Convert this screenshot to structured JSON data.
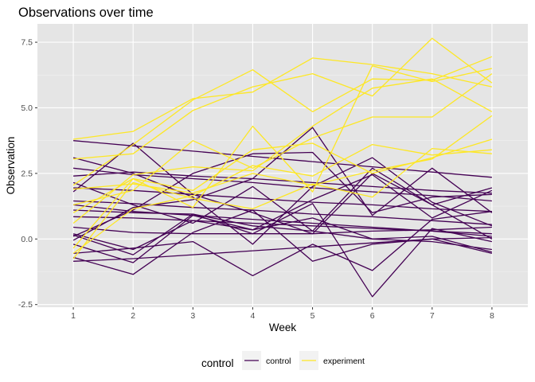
{
  "chart_data": {
    "type": "line",
    "title": "Observations over time",
    "xlabel": "Week",
    "ylabel": "Observation",
    "x": [
      1,
      2,
      3,
      4,
      5,
      6,
      7,
      8
    ],
    "x_tick_labels": [
      "1",
      "2",
      "3",
      "4",
      "5",
      "6",
      "7",
      "8"
    ],
    "y_ticks": [
      -2.5,
      0.0,
      2.5,
      5.0,
      7.5
    ],
    "y_tick_labels": [
      "-2.5",
      "0.0",
      "2.5",
      "5.0",
      "7.5"
    ],
    "xlim": [
      0.4,
      8.6
    ],
    "ylim": [
      -2.6,
      8.2
    ],
    "grid": true,
    "background_color": "#E5E5E5",
    "legend": {
      "title": "control",
      "position": "bottom",
      "entries": [
        {
          "label": "control",
          "color": "#440154"
        },
        {
          "label": "experiment",
          "color": "#FDE725"
        }
      ]
    },
    "series": [
      {
        "group": "control",
        "color": "#440154",
        "values": [
          3.75,
          3.55,
          3.35,
          3.15,
          2.95,
          2.75,
          2.55,
          2.35
        ]
      },
      {
        "group": "control",
        "color": "#440154",
        "values": [
          3.1,
          2.5,
          1.6,
          -0.2,
          2.0,
          3.1,
          1.4,
          0.5
        ]
      },
      {
        "group": "control",
        "color": "#440154",
        "values": [
          2.4,
          2.55,
          2.4,
          2.3,
          2.15,
          2.0,
          1.85,
          1.75
        ]
      },
      {
        "group": "control",
        "color": "#440154",
        "values": [
          2.15,
          1.3,
          0.6,
          2.0,
          0.3,
          2.7,
          1.3,
          0.0
        ]
      },
      {
        "group": "control",
        "color": "#440154",
        "values": [
          1.8,
          3.65,
          1.7,
          1.0,
          0.2,
          2.5,
          1.3,
          1.95
        ]
      },
      {
        "group": "control",
        "color": "#440154",
        "values": [
          1.3,
          1.05,
          0.9,
          0.75,
          0.6,
          0.45,
          0.3,
          0.1
        ]
      },
      {
        "group": "control",
        "color": "#440154",
        "values": [
          0.85,
          0.8,
          0.7,
          0.6,
          0.5,
          0.4,
          0.3,
          0.2
        ]
      },
      {
        "group": "control",
        "color": "#440154",
        "values": [
          0.45,
          0.25,
          0.2,
          0.2,
          0.2,
          0.3,
          0.35,
          0.45
        ]
      },
      {
        "group": "control",
        "color": "#440154",
        "values": [
          0.1,
          1.1,
          2.5,
          3.25,
          3.3,
          1.0,
          1.6,
          1.7
        ]
      },
      {
        "group": "control",
        "color": "#440154",
        "values": [
          -0.05,
          1.2,
          1.5,
          2.3,
          4.25,
          0.9,
          2.7,
          1.0
        ]
      },
      {
        "group": "control",
        "color": "#440154",
        "values": [
          -0.2,
          -0.9,
          0.9,
          0.35,
          1.5,
          2.45,
          0.8,
          1.85
        ]
      },
      {
        "group": "control",
        "color": "#440154",
        "values": [
          -0.55,
          -0.35,
          -0.1,
          -1.4,
          -0.2,
          -1.2,
          0.75,
          1.05
        ]
      },
      {
        "group": "control",
        "color": "#440154",
        "values": [
          -0.7,
          -1.35,
          0.25,
          1.1,
          -0.85,
          -0.2,
          0.0,
          -0.55
        ]
      },
      {
        "group": "control",
        "color": "#440154",
        "values": [
          0.15,
          -0.6,
          0.95,
          0.2,
          1.35,
          -2.2,
          0.4,
          -0.1
        ]
      },
      {
        "group": "control",
        "color": "#440154",
        "values": [
          1.45,
          1.35,
          1.2,
          1.1,
          0.95,
          0.85,
          0.7,
          0.55
        ]
      },
      {
        "group": "control",
        "color": "#440154",
        "values": [
          2.7,
          2.45,
          2.3,
          2.15,
          1.95,
          1.8,
          1.65,
          1.45
        ]
      },
      {
        "group": "control",
        "color": "#440154",
        "values": [
          -0.85,
          -0.75,
          -0.6,
          -0.45,
          -0.3,
          -0.15,
          0.0,
          0.05
        ]
      },
      {
        "group": "control",
        "color": "#440154",
        "values": [
          1.1,
          1.0,
          0.95,
          0.5,
          0.3,
          0.0,
          -0.1,
          -0.4
        ]
      },
      {
        "group": "control",
        "color": "#440154",
        "values": [
          0.2,
          -0.4,
          0.7,
          0.35,
          0.8,
          0.0,
          0.1,
          -0.5
        ]
      },
      {
        "group": "control",
        "color": "#440154",
        "values": [
          1.95,
          1.85,
          1.7,
          1.55,
          1.4,
          1.3,
          1.15,
          1.05
        ]
      },
      {
        "group": "experiment",
        "color": "#FDE725",
        "values": [
          3.8,
          4.1,
          5.35,
          5.6,
          6.9,
          6.65,
          6.3,
          5.8
        ]
      },
      {
        "group": "experiment",
        "color": "#FDE725",
        "values": [
          3.05,
          3.25,
          4.9,
          5.8,
          6.3,
          5.45,
          7.65,
          5.95
        ]
      },
      {
        "group": "experiment",
        "color": "#FDE725",
        "values": [
          2.05,
          3.6,
          5.3,
          6.45,
          4.85,
          6.1,
          6.05,
          6.95
        ]
      },
      {
        "group": "experiment",
        "color": "#FDE725",
        "values": [
          1.3,
          1.85,
          3.75,
          2.7,
          3.85,
          4.65,
          4.65,
          6.3
        ]
      },
      {
        "group": "experiment",
        "color": "#FDE725",
        "values": [
          1.0,
          2.3,
          1.2,
          4.3,
          1.8,
          6.6,
          6.0,
          6.5
        ]
      },
      {
        "group": "experiment",
        "color": "#FDE725",
        "values": [
          0.6,
          2.45,
          2.75,
          2.6,
          4.3,
          5.75,
          6.1,
          4.85
        ]
      },
      {
        "group": "experiment",
        "color": "#FDE725",
        "values": [
          -0.35,
          2.3,
          1.85,
          3.4,
          3.65,
          2.5,
          3.1,
          3.8
        ]
      },
      {
        "group": "experiment",
        "color": "#FDE725",
        "values": [
          -0.55,
          1.15,
          1.65,
          2.8,
          2.4,
          3.6,
          3.2,
          3.4
        ]
      },
      {
        "group": "experiment",
        "color": "#FDE725",
        "values": [
          -0.75,
          2.15,
          1.55,
          1.15,
          2.1,
          1.6,
          3.45,
          3.25
        ]
      },
      {
        "group": "experiment",
        "color": "#FDE725",
        "values": [
          1.9,
          2.1,
          1.75,
          2.5,
          2.05,
          2.6,
          3.05,
          4.7
        ]
      }
    ]
  }
}
